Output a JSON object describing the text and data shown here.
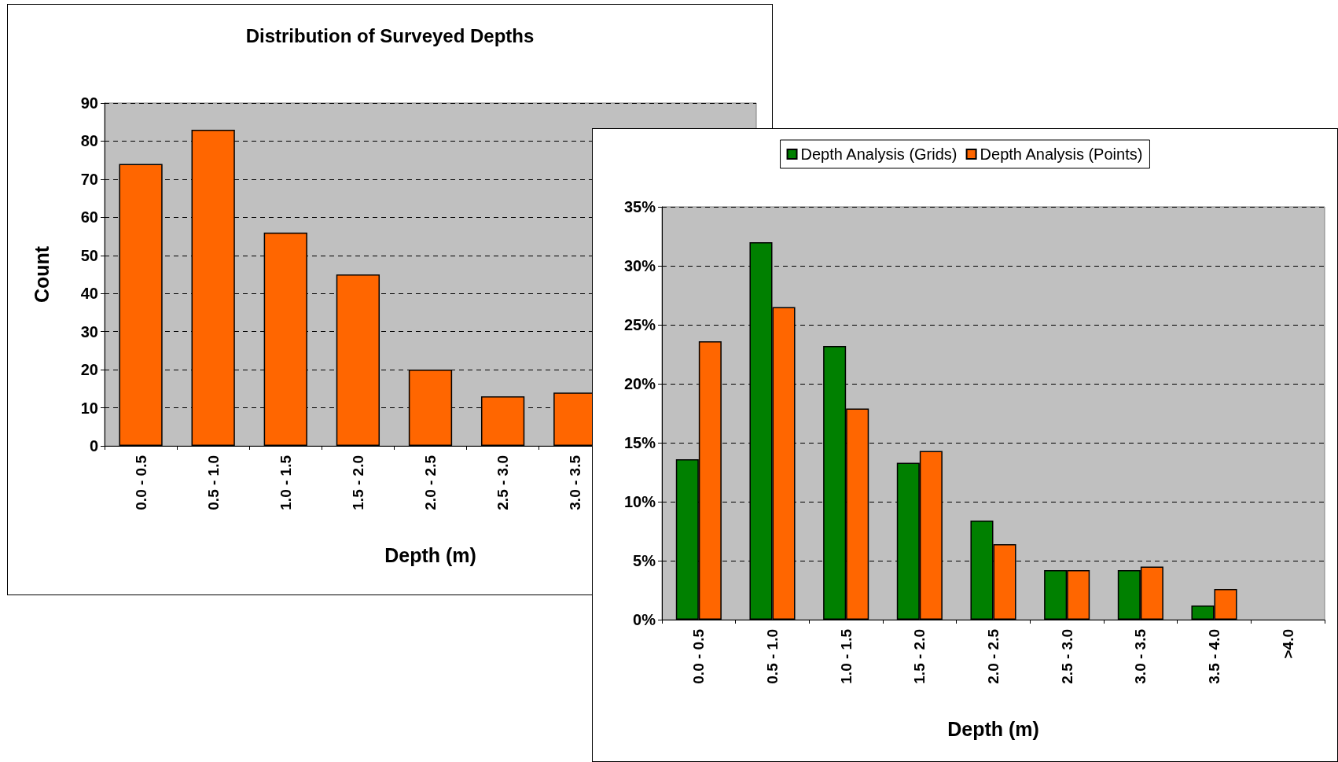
{
  "chart_data": [
    {
      "type": "bar",
      "title": "Distribution of Surveyed Depths",
      "xlabel": "Depth (m)",
      "ylabel": "Count",
      "categories": [
        "0.0 - 0.5",
        "0.5 - 1.0",
        "1.0 - 1.5",
        "1.5 - 2.0",
        "2.0 - 2.5",
        "2.5 - 3.0",
        "3.0 - 3.5",
        null,
        null
      ],
      "values": [
        74,
        83,
        56,
        45,
        20,
        13,
        14,
        null,
        null
      ],
      "color": "#ff6600",
      "ylim": [
        0,
        90
      ],
      "yticks": [
        0,
        10,
        20,
        30,
        40,
        50,
        60,
        70,
        80,
        90
      ],
      "grid": "y",
      "legend": false
    },
    {
      "type": "bar",
      "xlabel": "Depth (m)",
      "categories": [
        "0.0 - 0.5",
        "0.5 - 1.0",
        "1.0 - 1.5",
        "1.5 - 2.0",
        "2.0 - 2.5",
        "2.5 - 3.0",
        "3.0 - 3.5",
        "3.5 - 4.0",
        ">4.0"
      ],
      "series": [
        {
          "name": "Depth Analysis (Grids)",
          "color": "#008000",
          "values": [
            13.6,
            32.0,
            23.2,
            13.3,
            8.4,
            4.2,
            4.2,
            1.2,
            null
          ]
        },
        {
          "name": "Depth Analysis (Points)",
          "color": "#ff6600",
          "values": [
            23.6,
            26.5,
            17.9,
            14.3,
            6.4,
            4.2,
            4.5,
            2.6,
            null
          ]
        }
      ],
      "ylim": [
        0,
        35
      ],
      "yticks": [
        {
          "value": 0,
          "label": "0%"
        },
        {
          "value": 5,
          "label": "5%"
        },
        {
          "value": 10,
          "label": "10%"
        },
        {
          "value": 15,
          "label": "15%"
        },
        {
          "value": 20,
          "label": "20%"
        },
        {
          "value": 25,
          "label": "25%"
        },
        {
          "value": 30,
          "label": "30%"
        },
        {
          "value": 35,
          "label": "35%"
        }
      ],
      "grid": "y",
      "legend": "top"
    }
  ]
}
